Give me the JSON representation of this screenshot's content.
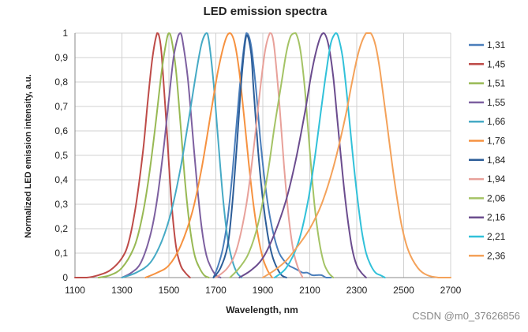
{
  "chart_data": {
    "type": "line",
    "title": "LED emission spectra",
    "xlabel": "Wavelength, nm",
    "ylabel": "Normalized LED emission intensity, a.u.",
    "xlim": [
      1100,
      2700
    ],
    "ylim": [
      0,
      1
    ],
    "x_ticks": [
      1100,
      1300,
      1500,
      1700,
      1900,
      2100,
      2300,
      2500,
      2700
    ],
    "y_ticks": [
      "0",
      "0,1",
      "0,2",
      "0,3",
      "0,4",
      "0,5",
      "0,6",
      "0,7",
      "0,8",
      "0,9",
      "1"
    ],
    "grid": true,
    "legend_position": "right",
    "series": [
      {
        "name": "1,31",
        "color": "#4a7ebb",
        "x": [
          1690,
          1710,
          1730,
          1750,
          1770,
          1790,
          1810,
          1830,
          1850,
          1870,
          1890,
          1910,
          1930,
          1950,
          1970,
          1990,
          2010,
          2030,
          2050,
          2070,
          2090,
          2110,
          2130,
          2150,
          2170,
          2190
        ],
        "y": [
          0.0,
          0.05,
          0.12,
          0.24,
          0.42,
          0.65,
          0.86,
          1.0,
          0.95,
          0.78,
          0.56,
          0.38,
          0.25,
          0.16,
          0.1,
          0.07,
          0.05,
          0.04,
          0.03,
          0.02,
          0.02,
          0.01,
          0.01,
          0.01,
          0.0,
          0.0
        ]
      },
      {
        "name": "1,45",
        "color": "#be4b48",
        "x": [
          1100,
          1150,
          1200,
          1250,
          1300,
          1330,
          1360,
          1390,
          1410,
          1430,
          1450,
          1460,
          1470,
          1490,
          1510,
          1530,
          1550,
          1570,
          1590
        ],
        "y": [
          0.0,
          0.0,
          0.01,
          0.03,
          0.08,
          0.15,
          0.3,
          0.52,
          0.72,
          0.9,
          1.0,
          0.98,
          0.9,
          0.62,
          0.32,
          0.13,
          0.05,
          0.02,
          0.0
        ]
      },
      {
        "name": "1,51",
        "color": "#98b954",
        "x": [
          1200,
          1250,
          1300,
          1350,
          1380,
          1410,
          1440,
          1470,
          1490,
          1500,
          1510,
          1530,
          1550,
          1570,
          1590,
          1610,
          1630,
          1650,
          1670
        ],
        "y": [
          0.0,
          0.01,
          0.04,
          0.12,
          0.22,
          0.38,
          0.6,
          0.85,
          0.97,
          1.0,
          0.98,
          0.85,
          0.62,
          0.38,
          0.2,
          0.09,
          0.04,
          0.01,
          0.0
        ]
      },
      {
        "name": "1,55",
        "color": "#7d60a0",
        "x": [
          1300,
          1340,
          1380,
          1420,
          1450,
          1480,
          1500,
          1520,
          1540,
          1550,
          1560,
          1580,
          1600,
          1620,
          1640,
          1660,
          1680,
          1700,
          1720
        ],
        "y": [
          0.0,
          0.02,
          0.06,
          0.17,
          0.32,
          0.55,
          0.73,
          0.9,
          0.99,
          1.0,
          0.96,
          0.82,
          0.6,
          0.38,
          0.2,
          0.09,
          0.04,
          0.01,
          0.0
        ]
      },
      {
        "name": "1,66",
        "color": "#46aac5",
        "x": [
          1300,
          1360,
          1420,
          1470,
          1510,
          1550,
          1590,
          1620,
          1640,
          1660,
          1670,
          1690,
          1710,
          1730,
          1750,
          1770,
          1790,
          1810
        ],
        "y": [
          0.0,
          0.02,
          0.06,
          0.15,
          0.27,
          0.45,
          0.68,
          0.86,
          0.96,
          1.0,
          0.97,
          0.8,
          0.56,
          0.33,
          0.16,
          0.07,
          0.02,
          0.0
        ]
      },
      {
        "name": "1,76",
        "color": "#f69240",
        "x": [
          1400,
          1450,
          1500,
          1550,
          1600,
          1640,
          1680,
          1710,
          1740,
          1760,
          1780,
          1800,
          1820,
          1840,
          1860,
          1880,
          1900,
          1920,
          1940
        ],
        "y": [
          0.0,
          0.02,
          0.05,
          0.13,
          0.27,
          0.45,
          0.68,
          0.85,
          0.97,
          1.0,
          0.96,
          0.84,
          0.66,
          0.47,
          0.3,
          0.17,
          0.08,
          0.03,
          0.0
        ]
      },
      {
        "name": "1,84",
        "color": "#2c5d98",
        "x": [
          1690,
          1720,
          1750,
          1770,
          1790,
          1810,
          1830,
          1850,
          1860,
          1880,
          1900,
          1920,
          1940,
          1960,
          1980,
          2000
        ],
        "y": [
          0.0,
          0.04,
          0.13,
          0.3,
          0.55,
          0.82,
          0.99,
          0.92,
          0.78,
          0.52,
          0.32,
          0.18,
          0.09,
          0.04,
          0.01,
          0.0
        ]
      },
      {
        "name": "1,94",
        "color": "#e8a19a",
        "x": [
          1700,
          1750,
          1790,
          1830,
          1860,
          1890,
          1910,
          1930,
          1940,
          1950,
          1970,
          1990,
          2010,
          2030,
          2050,
          2070
        ],
        "y": [
          0.0,
          0.04,
          0.12,
          0.3,
          0.52,
          0.78,
          0.93,
          1.0,
          0.99,
          0.93,
          0.72,
          0.46,
          0.25,
          0.11,
          0.04,
          0.0
        ]
      },
      {
        "name": "2,06",
        "color": "#a4c365",
        "x": [
          1760,
          1800,
          1840,
          1880,
          1920,
          1950,
          1980,
          2000,
          2020,
          2040,
          2060,
          2080,
          2100,
          2120,
          2140,
          2160,
          2180,
          2200
        ],
        "y": [
          0.0,
          0.04,
          0.1,
          0.22,
          0.42,
          0.62,
          0.8,
          0.92,
          0.99,
          1.0,
          0.93,
          0.76,
          0.52,
          0.3,
          0.15,
          0.06,
          0.02,
          0.0
        ]
      },
      {
        "name": "2,16",
        "color": "#6b4c8e",
        "x": [
          1800,
          1850,
          1900,
          1950,
          2000,
          2040,
          2080,
          2110,
          2140,
          2160,
          2180,
          2200,
          2220,
          2240,
          2260,
          2280,
          2300,
          2320,
          2340
        ],
        "y": [
          0.0,
          0.03,
          0.08,
          0.18,
          0.32,
          0.48,
          0.68,
          0.85,
          0.97,
          1.0,
          0.95,
          0.82,
          0.62,
          0.42,
          0.25,
          0.12,
          0.05,
          0.02,
          0.0
        ]
      },
      {
        "name": "2,21",
        "color": "#31c1d9",
        "x": [
          1950,
          2000,
          2050,
          2090,
          2120,
          2150,
          2170,
          2190,
          2210,
          2220,
          2240,
          2260,
          2280,
          2300,
          2320,
          2340,
          2360,
          2380,
          2400,
          2420
        ],
        "y": [
          0.0,
          0.04,
          0.14,
          0.3,
          0.48,
          0.7,
          0.84,
          0.96,
          1.0,
          0.99,
          0.9,
          0.73,
          0.53,
          0.35,
          0.2,
          0.1,
          0.05,
          0.02,
          0.01,
          0.0
        ]
      },
      {
        "name": "2,36",
        "color": "#f4a25a",
        "x": [
          1900,
          1950,
          2000,
          2050,
          2100,
          2150,
          2200,
          2250,
          2280,
          2310,
          2340,
          2360,
          2380,
          2400,
          2430,
          2460,
          2490,
          2520,
          2560,
          2600,
          2650,
          2700
        ],
        "y": [
          0.0,
          0.03,
          0.07,
          0.13,
          0.2,
          0.3,
          0.45,
          0.65,
          0.8,
          0.93,
          1.0,
          1.0,
          0.95,
          0.84,
          0.62,
          0.4,
          0.22,
          0.11,
          0.04,
          0.01,
          0.0,
          0.0
        ]
      }
    ]
  },
  "watermark": "CSDN @m0_37626856"
}
